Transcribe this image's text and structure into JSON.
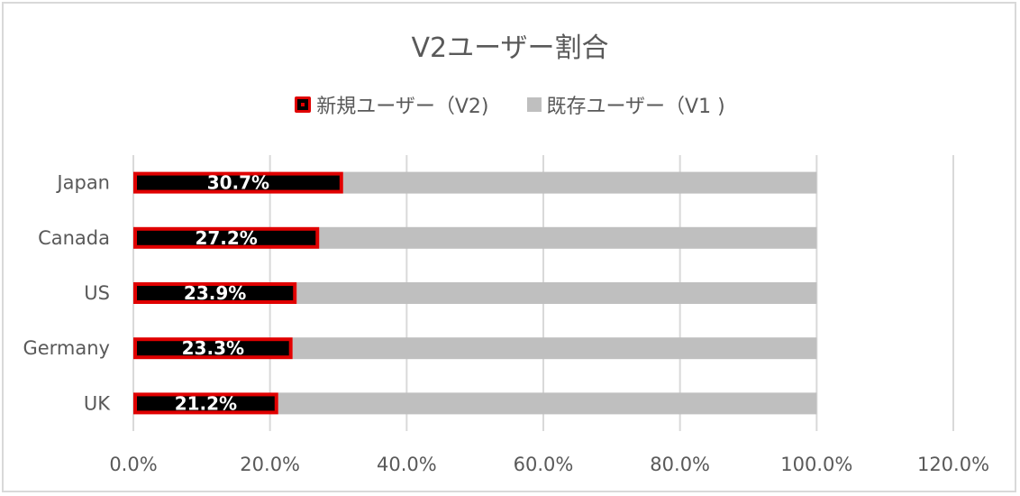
{
  "chart_data": {
    "type": "bar",
    "orientation": "horizontal",
    "stacked": true,
    "title": "V2ユーザー割合",
    "categories": [
      "Japan",
      "Canada",
      "US",
      "Germany",
      "UK"
    ],
    "series": [
      {
        "name": "新規ユーザー（V2)",
        "values": [
          30.7,
          27.2,
          23.9,
          23.3,
          21.2
        ],
        "labels": [
          "30.7%",
          "27.2%",
          "23.9%",
          "23.3%",
          "21.2%"
        ],
        "color": "#000000",
        "border_color": "#e00000"
      },
      {
        "name": "既存ユーザー（V1 )",
        "values": [
          69.3,
          72.8,
          76.1,
          76.7,
          78.8
        ],
        "color": "#bfbfbf"
      }
    ],
    "xlim": [
      0,
      120
    ],
    "x_ticks": [
      "0.0%",
      "20.0%",
      "40.0%",
      "60.0%",
      "80.0%",
      "100.0%",
      "120.0%"
    ],
    "grid": true,
    "legend_position": "top"
  }
}
